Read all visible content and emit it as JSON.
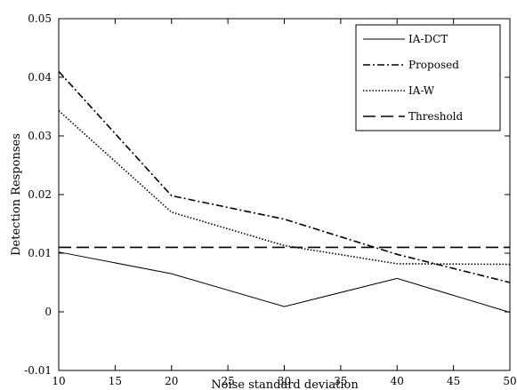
{
  "chart_data": {
    "type": "line",
    "title": "",
    "xlabel": "Noise standard deviation",
    "ylabel": "Detection Responses",
    "xlim": [
      10,
      50
    ],
    "ylim": [
      -0.01,
      0.05
    ],
    "xticks": [
      10,
      15,
      20,
      25,
      30,
      35,
      40,
      45,
      50
    ],
    "yticks": [
      -0.01,
      0,
      0.01,
      0.02,
      0.03,
      0.04,
      0.05
    ],
    "xtick_labels": [
      "10",
      "15",
      "20",
      "25",
      "30",
      "35",
      "40",
      "45",
      "50"
    ],
    "ytick_labels": [
      "-0.01",
      "0",
      "0.01",
      "0.02",
      "0.03",
      "0.04",
      "0.05"
    ],
    "grid": false,
    "legend_position": "top-right",
    "series": [
      {
        "name": "IA-DCT",
        "style": "solid",
        "x": [
          10,
          20,
          30,
          40,
          50
        ],
        "y": [
          0.0102,
          0.0065,
          0.0009,
          0.0057,
          -0.0001
        ]
      },
      {
        "name": "Proposed",
        "style": "dashdot",
        "x": [
          10,
          20,
          30,
          40,
          50
        ],
        "y": [
          0.041,
          0.0198,
          0.0158,
          0.0098,
          0.005
        ]
      },
      {
        "name": "IA-W",
        "style": "dotted",
        "x": [
          10,
          20,
          30,
          40,
          50
        ],
        "y": [
          0.0343,
          0.017,
          0.0113,
          0.0082,
          0.0081
        ]
      },
      {
        "name": "Threshold",
        "style": "dashed",
        "x": [
          10,
          50
        ],
        "y": [
          0.011,
          0.011
        ]
      }
    ],
    "colors": {
      "line": "#000000",
      "background": "#ffffff"
    }
  }
}
